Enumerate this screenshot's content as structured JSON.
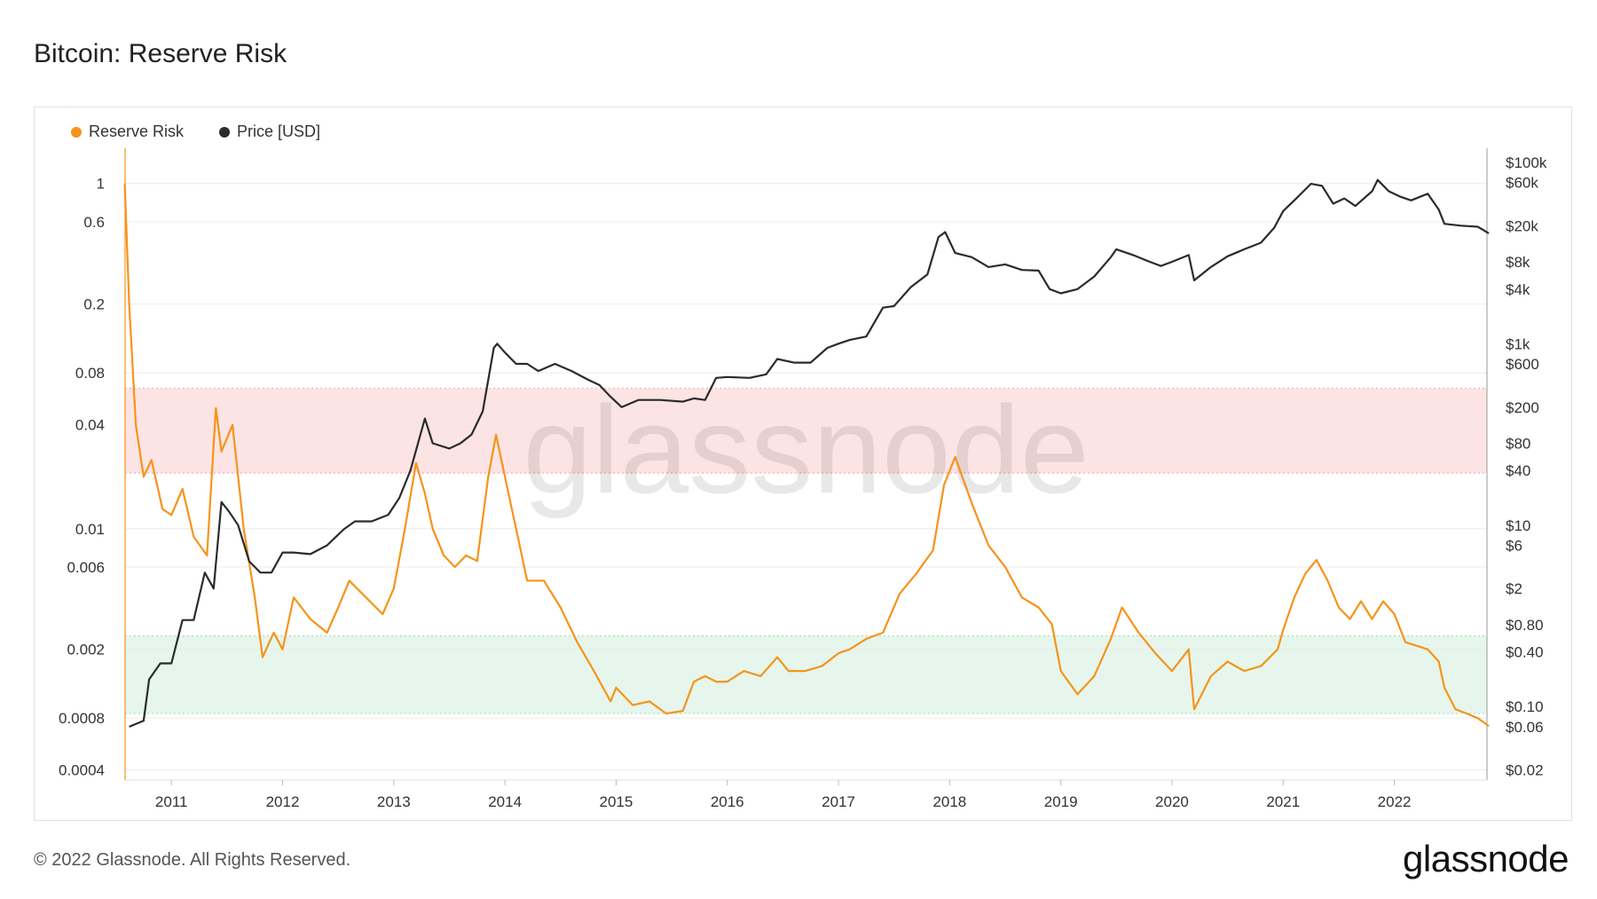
{
  "title": "Bitcoin: Reserve Risk",
  "footer": {
    "copyright": "© 2022 Glassnode. All Rights Reserved.",
    "logo": "glassnode"
  },
  "watermark": "glassnode",
  "colors": {
    "reserve_risk": "#f7931a",
    "price": "#2b2b2b",
    "red_band": "#fde4e4",
    "green_band": "#e6f6ec"
  },
  "chart_data": {
    "type": "line",
    "title": "Bitcoin: Reserve Risk",
    "x_tick_labels": [
      "2011",
      "2012",
      "2013",
      "2014",
      "2015",
      "2016",
      "2017",
      "2018",
      "2019",
      "2020",
      "2021",
      "2022"
    ],
    "x_range": [
      "2010-08",
      "2022-11"
    ],
    "legend": {
      "placement": "top-left",
      "entries": [
        "Reserve Risk",
        "Price [USD]"
      ]
    },
    "y_left": {
      "scale": "log",
      "range": [
        0.00035,
        1.6
      ],
      "tick_labels": [
        "1",
        "0.6",
        "0.2",
        "0.08",
        "0.04",
        "0.01",
        "0.006",
        "0.002",
        "0.0008",
        "0.0004"
      ],
      "tick_values": [
        1,
        0.6,
        0.2,
        0.08,
        0.04,
        0.01,
        0.006,
        0.002,
        0.0008,
        0.0004
      ]
    },
    "y_right": {
      "scale": "log",
      "range": [
        0.0155,
        143000
      ],
      "tick_labels": [
        "$100k",
        "$60k",
        "$20k",
        "$8k",
        "$4k",
        "$1k",
        "$600",
        "$200",
        "$80",
        "$40",
        "$10",
        "$6",
        "$2",
        "$0.80",
        "$0.40",
        "$0.10",
        "$0.06",
        "$0.02"
      ],
      "tick_values": [
        100000,
        60000,
        20000,
        8000,
        4000,
        1000,
        600,
        200,
        80,
        40,
        10,
        6,
        2,
        0.8,
        0.4,
        0.1,
        0.06,
        0.02
      ]
    },
    "bands": [
      {
        "axis": "left",
        "from": 0.021,
        "to": 0.065,
        "color": "#fde4e4"
      },
      {
        "axis": "left",
        "from": 0.00085,
        "to": 0.0024,
        "color": "#e6f6ec"
      }
    ],
    "series": [
      {
        "name": "Reserve Risk",
        "axis": "left",
        "color": "#f7931a",
        "x": [
          2010.58,
          2010.62,
          2010.68,
          2010.75,
          2010.82,
          2010.92,
          2011.0,
          2011.1,
          2011.2,
          2011.32,
          2011.4,
          2011.45,
          2011.55,
          2011.65,
          2011.75,
          2011.82,
          2011.92,
          2012.0,
          2012.1,
          2012.25,
          2012.4,
          2012.5,
          2012.6,
          2012.75,
          2012.9,
          2013.0,
          2013.1,
          2013.2,
          2013.28,
          2013.35,
          2013.45,
          2013.55,
          2013.65,
          2013.75,
          2013.85,
          2013.92,
          2014.0,
          2014.1,
          2014.2,
          2014.35,
          2014.5,
          2014.65,
          2014.8,
          2014.95,
          2015.0,
          2015.15,
          2015.3,
          2015.45,
          2015.6,
          2015.7,
          2015.8,
          2015.9,
          2016.0,
          2016.15,
          2016.3,
          2016.45,
          2016.55,
          2016.7,
          2016.85,
          2017.0,
          2017.1,
          2017.25,
          2017.4,
          2017.55,
          2017.7,
          2017.85,
          2017.95,
          2018.05,
          2018.2,
          2018.35,
          2018.5,
          2018.65,
          2018.8,
          2018.92,
          2019.0,
          2019.15,
          2019.3,
          2019.45,
          2019.55,
          2019.7,
          2019.85,
          2020.0,
          2020.15,
          2020.2,
          2020.35,
          2020.5,
          2020.65,
          2020.8,
          2020.95,
          2021.0,
          2021.1,
          2021.2,
          2021.3,
          2021.4,
          2021.5,
          2021.6,
          2021.7,
          2021.8,
          2021.9,
          2022.0,
          2022.1,
          2022.2,
          2022.3,
          2022.4,
          2022.45,
          2022.55,
          2022.65,
          2022.75,
          2022.85
        ],
        "y": [
          1.0,
          0.2,
          0.04,
          0.02,
          0.025,
          0.013,
          0.012,
          0.017,
          0.009,
          0.007,
          0.05,
          0.028,
          0.04,
          0.01,
          0.004,
          0.0018,
          0.0025,
          0.002,
          0.004,
          0.003,
          0.0025,
          0.0035,
          0.005,
          0.004,
          0.0032,
          0.0045,
          0.01,
          0.024,
          0.016,
          0.01,
          0.007,
          0.006,
          0.007,
          0.0065,
          0.02,
          0.035,
          0.02,
          0.01,
          0.005,
          0.005,
          0.0035,
          0.0022,
          0.0015,
          0.001,
          0.0012,
          0.00095,
          0.001,
          0.00085,
          0.00088,
          0.0013,
          0.0014,
          0.0013,
          0.0013,
          0.0015,
          0.0014,
          0.0018,
          0.0015,
          0.0015,
          0.0016,
          0.0019,
          0.002,
          0.0023,
          0.0025,
          0.0042,
          0.0055,
          0.0075,
          0.018,
          0.026,
          0.014,
          0.008,
          0.006,
          0.004,
          0.0035,
          0.0028,
          0.0015,
          0.0011,
          0.0014,
          0.0023,
          0.0035,
          0.0025,
          0.0019,
          0.0015,
          0.002,
          0.0009,
          0.0014,
          0.0017,
          0.0015,
          0.0016,
          0.002,
          0.0026,
          0.004,
          0.0055,
          0.0066,
          0.005,
          0.0035,
          0.003,
          0.0038,
          0.003,
          0.0038,
          0.0032,
          0.0022,
          0.0021,
          0.002,
          0.0017,
          0.0012,
          0.0009,
          0.00085,
          0.0008,
          0.00072
        ]
      },
      {
        "name": "Price [USD]",
        "axis": "right",
        "color": "#2b2b2b",
        "x": [
          2010.62,
          2010.75,
          2010.8,
          2010.9,
          2011.0,
          2011.1,
          2011.2,
          2011.3,
          2011.38,
          2011.45,
          2011.52,
          2011.6,
          2011.7,
          2011.8,
          2011.9,
          2012.0,
          2012.1,
          2012.25,
          2012.4,
          2012.55,
          2012.65,
          2012.8,
          2012.95,
          2013.05,
          2013.15,
          2013.28,
          2013.35,
          2013.5,
          2013.6,
          2013.7,
          2013.8,
          2013.9,
          2013.93,
          2014.0,
          2014.1,
          2014.2,
          2014.3,
          2014.45,
          2014.6,
          2014.75,
          2014.85,
          2014.95,
          2015.05,
          2015.2,
          2015.4,
          2015.6,
          2015.7,
          2015.8,
          2015.9,
          2016.0,
          2016.2,
          2016.35,
          2016.45,
          2016.6,
          2016.75,
          2016.9,
          2017.0,
          2017.1,
          2017.25,
          2017.4,
          2017.5,
          2017.65,
          2017.8,
          2017.9,
          2017.96,
          2018.05,
          2018.2,
          2018.35,
          2018.5,
          2018.65,
          2018.8,
          2018.9,
          2019.0,
          2019.15,
          2019.3,
          2019.45,
          2019.5,
          2019.65,
          2019.8,
          2019.9,
          2020.0,
          2020.15,
          2020.2,
          2020.35,
          2020.5,
          2020.65,
          2020.8,
          2020.92,
          2021.0,
          2021.1,
          2021.25,
          2021.35,
          2021.45,
          2021.55,
          2021.65,
          2021.8,
          2021.85,
          2021.95,
          2022.05,
          2022.15,
          2022.3,
          2022.4,
          2022.45,
          2022.6,
          2022.75,
          2022.85
        ],
        "y": [
          0.06,
          0.07,
          0.2,
          0.3,
          0.3,
          0.9,
          0.9,
          3,
          2,
          18,
          14,
          10,
          4,
          3,
          3,
          5,
          5,
          4.8,
          6,
          9,
          11,
          11,
          13,
          20,
          40,
          150,
          80,
          70,
          80,
          100,
          180,
          900,
          1000,
          800,
          600,
          600,
          500,
          600,
          500,
          400,
          350,
          260,
          200,
          240,
          240,
          230,
          250,
          240,
          420,
          430,
          420,
          460,
          680,
          620,
          620,
          900,
          1000,
          1100,
          1200,
          2500,
          2600,
          4200,
          5800,
          15000,
          17000,
          10000,
          9000,
          7000,
          7500,
          6500,
          6400,
          4000,
          3600,
          4000,
          5500,
          9000,
          11000,
          9500,
          8000,
          7200,
          8000,
          9500,
          5000,
          7000,
          9200,
          11000,
          13000,
          19000,
          29000,
          38000,
          58000,
          55000,
          35000,
          40000,
          33000,
          48000,
          64000,
          48000,
          42000,
          38000,
          45000,
          30000,
          21000,
          20000,
          19500,
          16500
        ]
      }
    ]
  }
}
